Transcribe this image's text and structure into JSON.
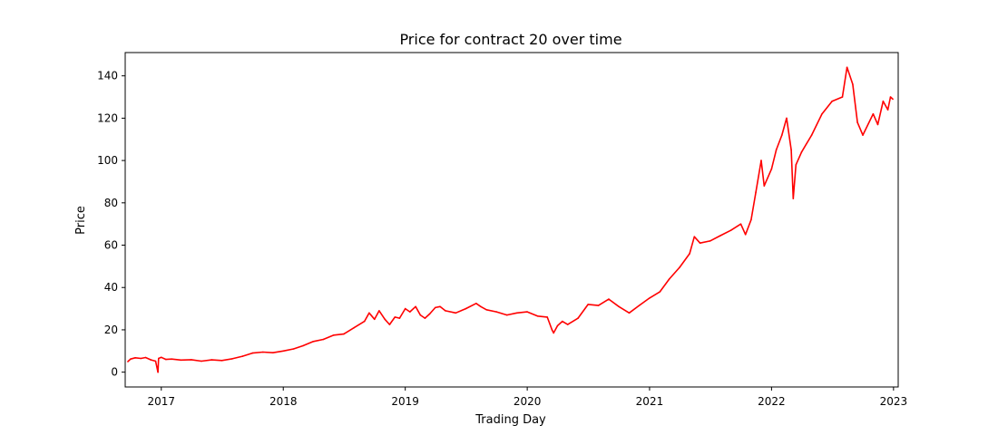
{
  "chart_data": {
    "type": "line",
    "title": "Price for contract 20 over time",
    "xlabel": "Trading Day",
    "ylabel": "Price",
    "x_axis": "date",
    "xlim": [
      "2016-09-15",
      "2023-01-15"
    ],
    "ylim": [
      -7,
      151
    ],
    "xticks": [
      {
        "date": "2017-01-01",
        "label": "2017"
      },
      {
        "date": "2018-01-01",
        "label": "2018"
      },
      {
        "date": "2019-01-01",
        "label": "2019"
      },
      {
        "date": "2020-01-01",
        "label": "2020"
      },
      {
        "date": "2021-01-01",
        "label": "2021"
      },
      {
        "date": "2022-01-01",
        "label": "2022"
      },
      {
        "date": "2023-01-01",
        "label": "2023"
      }
    ],
    "yticks": [
      0,
      20,
      40,
      60,
      80,
      100,
      120,
      140
    ],
    "grid": false,
    "legend": "none",
    "series": [
      {
        "color": "#ff0000",
        "points": [
          [
            "2016-09-23",
            5.0
          ],
          [
            "2016-10-01",
            6.2
          ],
          [
            "2016-10-15",
            6.8
          ],
          [
            "2016-11-01",
            6.5
          ],
          [
            "2016-11-15",
            6.9
          ],
          [
            "2016-12-01",
            5.8
          ],
          [
            "2016-12-15",
            5.2
          ],
          [
            "2016-12-22",
            0.0
          ],
          [
            "2016-12-24",
            6.5
          ],
          [
            "2017-01-01",
            7.0
          ],
          [
            "2017-01-15",
            6.0
          ],
          [
            "2017-02-01",
            6.2
          ],
          [
            "2017-03-01",
            5.7
          ],
          [
            "2017-04-01",
            5.9
          ],
          [
            "2017-05-01",
            5.2
          ],
          [
            "2017-06-01",
            5.8
          ],
          [
            "2017-07-01",
            5.5
          ],
          [
            "2017-08-01",
            6.3
          ],
          [
            "2017-09-01",
            7.5
          ],
          [
            "2017-10-01",
            9.0
          ],
          [
            "2017-11-01",
            9.5
          ],
          [
            "2017-12-01",
            9.2
          ],
          [
            "2018-01-01",
            10.0
          ],
          [
            "2018-02-01",
            11.0
          ],
          [
            "2018-03-01",
            12.5
          ],
          [
            "2018-04-01",
            14.5
          ],
          [
            "2018-05-01",
            15.5
          ],
          [
            "2018-06-01",
            17.5
          ],
          [
            "2018-07-01",
            18.0
          ],
          [
            "2018-08-01",
            21.0
          ],
          [
            "2018-09-01",
            24.0
          ],
          [
            "2018-09-15",
            28.0
          ],
          [
            "2018-10-01",
            25.0
          ],
          [
            "2018-10-15",
            29.0
          ],
          [
            "2018-11-01",
            25.0
          ],
          [
            "2018-11-15",
            22.5
          ],
          [
            "2018-12-01",
            26.0
          ],
          [
            "2018-12-15",
            25.5
          ],
          [
            "2019-01-01",
            30.0
          ],
          [
            "2019-01-15",
            28.5
          ],
          [
            "2019-02-01",
            31.0
          ],
          [
            "2019-02-15",
            27.0
          ],
          [
            "2019-03-01",
            25.5
          ],
          [
            "2019-03-15",
            27.5
          ],
          [
            "2019-04-01",
            30.5
          ],
          [
            "2019-04-15",
            31.0
          ],
          [
            "2019-05-01",
            29.0
          ],
          [
            "2019-06-01",
            28.0
          ],
          [
            "2019-07-01",
            30.0
          ],
          [
            "2019-08-01",
            32.5
          ],
          [
            "2019-08-15",
            31.0
          ],
          [
            "2019-09-01",
            29.5
          ],
          [
            "2019-10-01",
            28.5
          ],
          [
            "2019-11-01",
            27.0
          ],
          [
            "2019-12-01",
            28.0
          ],
          [
            "2020-01-01",
            28.5
          ],
          [
            "2020-02-01",
            26.5
          ],
          [
            "2020-03-01",
            26.0
          ],
          [
            "2020-03-15",
            20.0
          ],
          [
            "2020-03-20",
            18.5
          ],
          [
            "2020-04-01",
            22.0
          ],
          [
            "2020-04-15",
            24.0
          ],
          [
            "2020-05-01",
            22.5
          ],
          [
            "2020-06-01",
            25.5
          ],
          [
            "2020-07-01",
            32.0
          ],
          [
            "2020-08-01",
            31.5
          ],
          [
            "2020-09-01",
            34.5
          ],
          [
            "2020-10-01",
            31.0
          ],
          [
            "2020-11-01",
            28.0
          ],
          [
            "2020-12-01",
            31.5
          ],
          [
            "2021-01-01",
            35.0
          ],
          [
            "2021-02-01",
            38.0
          ],
          [
            "2021-03-01",
            44.0
          ],
          [
            "2021-04-01",
            49.5
          ],
          [
            "2021-05-01",
            56.0
          ],
          [
            "2021-05-15",
            64.0
          ],
          [
            "2021-06-01",
            61.0
          ],
          [
            "2021-07-01",
            62.0
          ],
          [
            "2021-08-01",
            64.5
          ],
          [
            "2021-09-01",
            67.0
          ],
          [
            "2021-10-01",
            70.0
          ],
          [
            "2021-10-15",
            65.0
          ],
          [
            "2021-11-01",
            72.0
          ],
          [
            "2021-11-15",
            85.0
          ],
          [
            "2021-12-01",
            100.0
          ],
          [
            "2021-12-10",
            88.0
          ],
          [
            "2022-01-01",
            96.0
          ],
          [
            "2022-01-15",
            105.0
          ],
          [
            "2022-02-01",
            112.0
          ],
          [
            "2022-02-15",
            120.0
          ],
          [
            "2022-03-01",
            105.0
          ],
          [
            "2022-03-07",
            82.0
          ],
          [
            "2022-03-15",
            98.0
          ],
          [
            "2022-04-01",
            104.0
          ],
          [
            "2022-05-01",
            112.0
          ],
          [
            "2022-06-01",
            122.0
          ],
          [
            "2022-07-01",
            128.0
          ],
          [
            "2022-08-01",
            130.0
          ],
          [
            "2022-08-15",
            144.0
          ],
          [
            "2022-09-01",
            136.0
          ],
          [
            "2022-09-15",
            118.0
          ],
          [
            "2022-10-01",
            112.0
          ],
          [
            "2022-11-01",
            122.0
          ],
          [
            "2022-11-15",
            117.0
          ],
          [
            "2022-12-01",
            128.0
          ],
          [
            "2022-12-15",
            124.0
          ],
          [
            "2022-12-23",
            130.0
          ],
          [
            "2022-12-30",
            129.0
          ]
        ]
      }
    ]
  }
}
